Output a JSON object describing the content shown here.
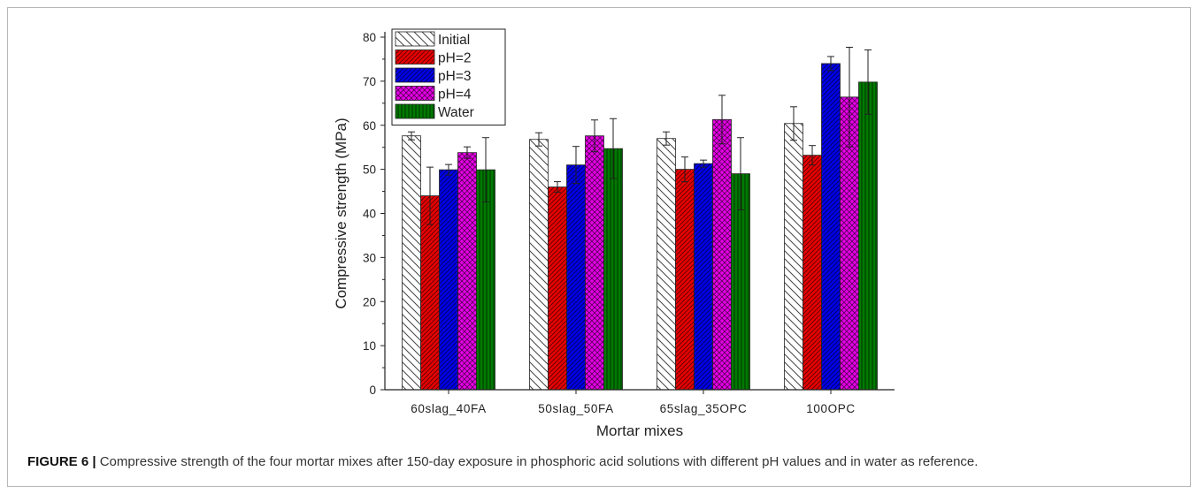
{
  "caption": {
    "label": "FIGURE 6 |",
    "text": " Compressive strength of the four mortar mixes after 150-day exposure in phosphoric acid solutions with different pH values and in water as reference."
  },
  "chart_data": {
    "type": "bar",
    "xlabel": "Mortar mixes",
    "ylabel": "Compressive strength (MPa)",
    "ylim": [
      0,
      80
    ],
    "yticks": [
      0,
      10,
      20,
      30,
      40,
      50,
      60,
      70,
      80
    ],
    "grid": false,
    "legend_position": "top-left",
    "categories": [
      "60slag_40FA",
      "50slag_50FA",
      "65slag_35OPC",
      "100OPC"
    ],
    "series": [
      {
        "name": "Initial",
        "color": "#ffffff",
        "pattern": "diag-back",
        "values": [
          57.6,
          56.8,
          57.0,
          60.4
        ],
        "errors": [
          0.9,
          1.5,
          1.5,
          3.8
        ]
      },
      {
        "name": "pH=2",
        "color": "#e60000",
        "pattern": "diag-fwd",
        "values": [
          44.0,
          46.0,
          50.0,
          53.2
        ],
        "errors": [
          6.5,
          1.2,
          2.8,
          2.2
        ]
      },
      {
        "name": "pH=3",
        "color": "#0000e6",
        "pattern": "diag-fwd",
        "values": [
          49.9,
          51.0,
          51.3,
          74.0
        ],
        "errors": [
          1.2,
          4.2,
          0.8,
          1.6
        ]
      },
      {
        "name": "pH=4",
        "color": "#e600e6",
        "pattern": "cross",
        "values": [
          53.8,
          57.6,
          61.3,
          66.4
        ],
        "errors": [
          1.3,
          3.6,
          5.5,
          11.3
        ]
      },
      {
        "name": "Water",
        "color": "#007a00",
        "pattern": "vertical",
        "values": [
          49.9,
          54.7,
          49.0,
          69.8
        ],
        "errors": [
          7.3,
          6.8,
          8.2,
          7.3
        ]
      }
    ]
  }
}
